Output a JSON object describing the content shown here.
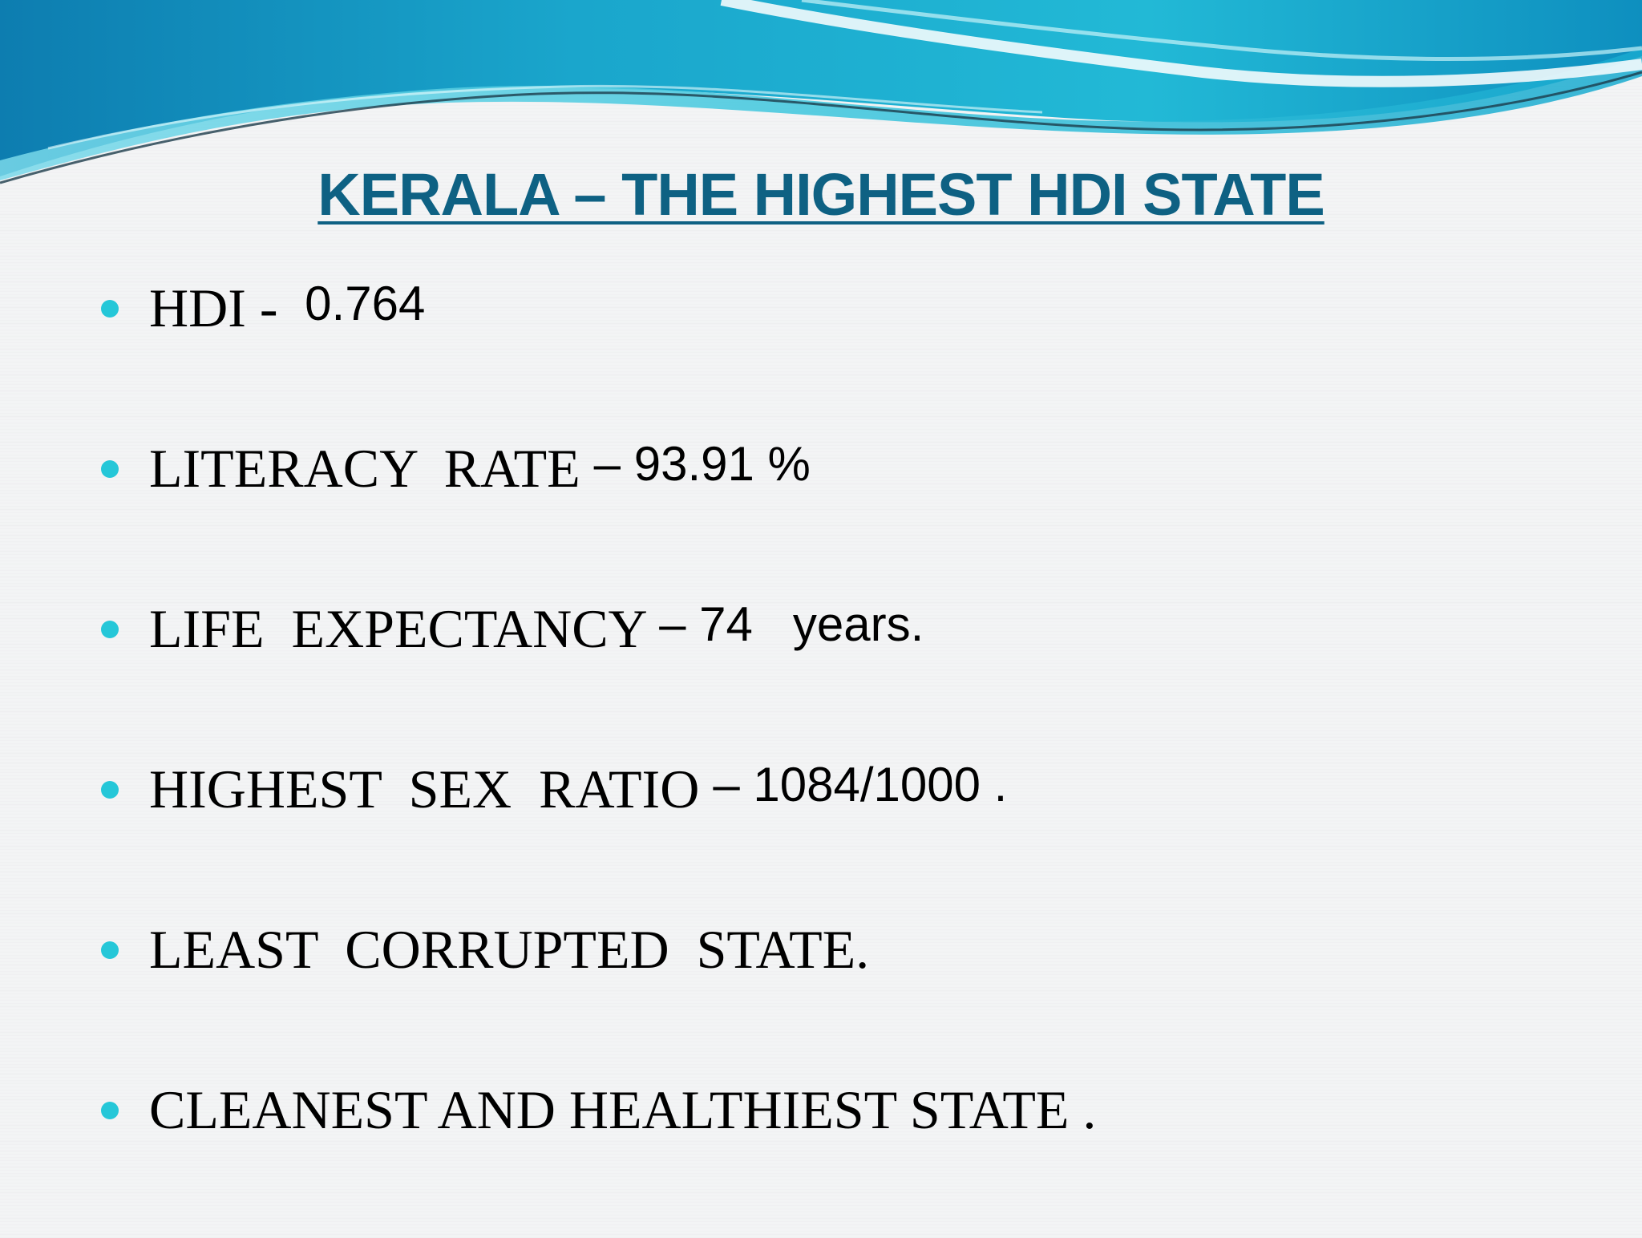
{
  "slide": {
    "title": "KERALA – THE HIGHEST HDI  STATE",
    "bullets": [
      {
        "label": "HDI - ",
        "value": " 0.764"
      },
      {
        "label": "LITERACY  RATE ",
        "value": "– 93.91 %"
      },
      {
        "label": "LIFE  EXPECTANCY ",
        "value": "– 74   years."
      },
      {
        "label": "HIGHEST  SEX  RATIO ",
        "value": "– 1084/1000 ."
      },
      {
        "label": "LEAST  CORRUPTED  STATE.",
        "value": ""
      },
      {
        "label": "CLEANEST AND HEALTHIEST STATE .",
        "value": ""
      }
    ]
  },
  "colors": {
    "title": "#0e6183",
    "bullet": "#25c7d8",
    "wave_light": "#8fe3ef",
    "wave_mid": "#22b8d2",
    "wave_dark": "#0a7fb0"
  }
}
